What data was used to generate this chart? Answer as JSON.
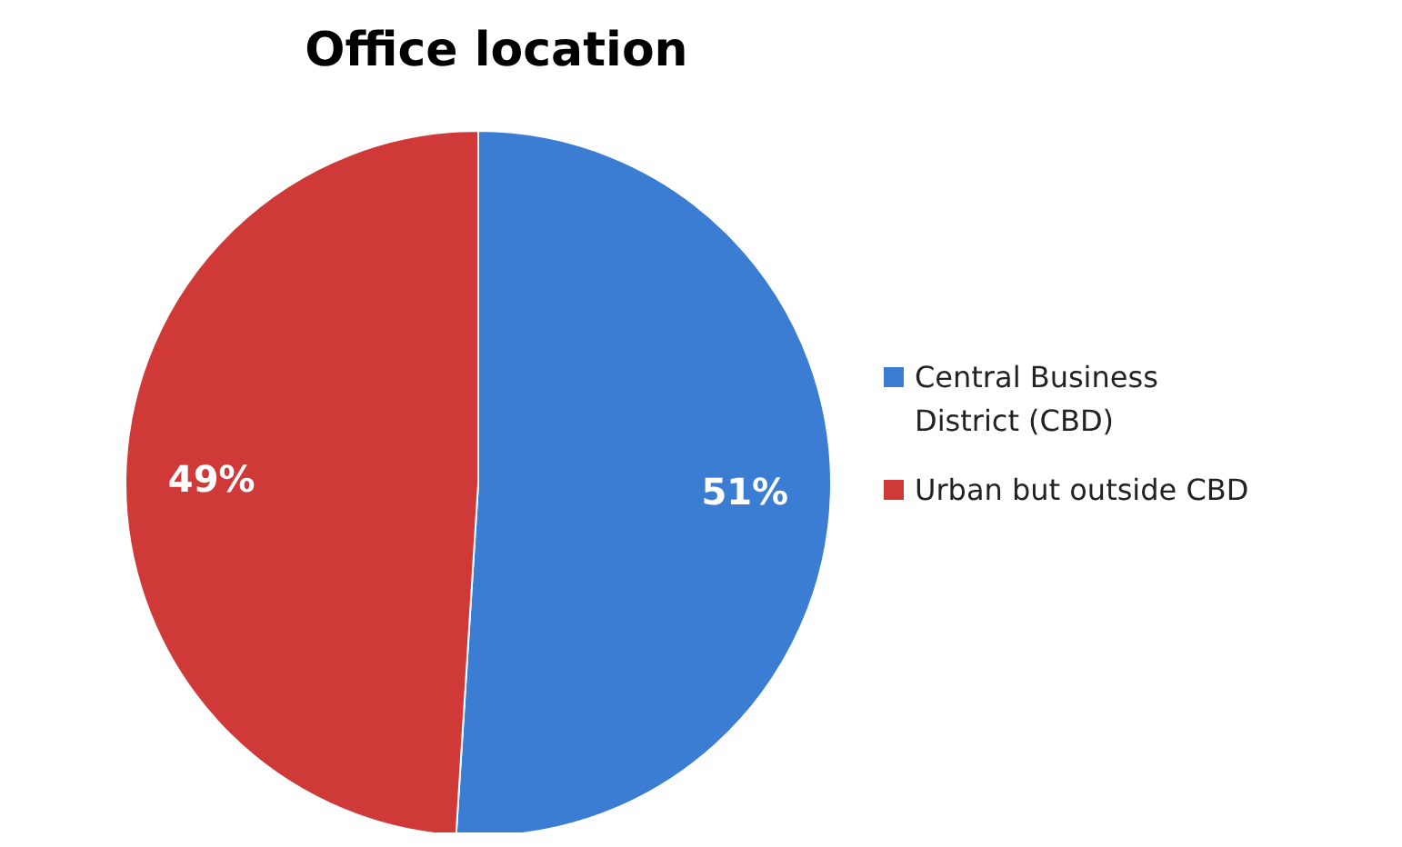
{
  "chart_data": {
    "type": "pie",
    "title": "Office location",
    "categories": [
      "Central Business District (CBD)",
      "Urban but outside CBD"
    ],
    "values": [
      51,
      49
    ],
    "colors": [
      "#3b7dd3",
      "#cf3a38"
    ],
    "value_labels": [
      "51%",
      "49%"
    ],
    "legend": "right"
  }
}
